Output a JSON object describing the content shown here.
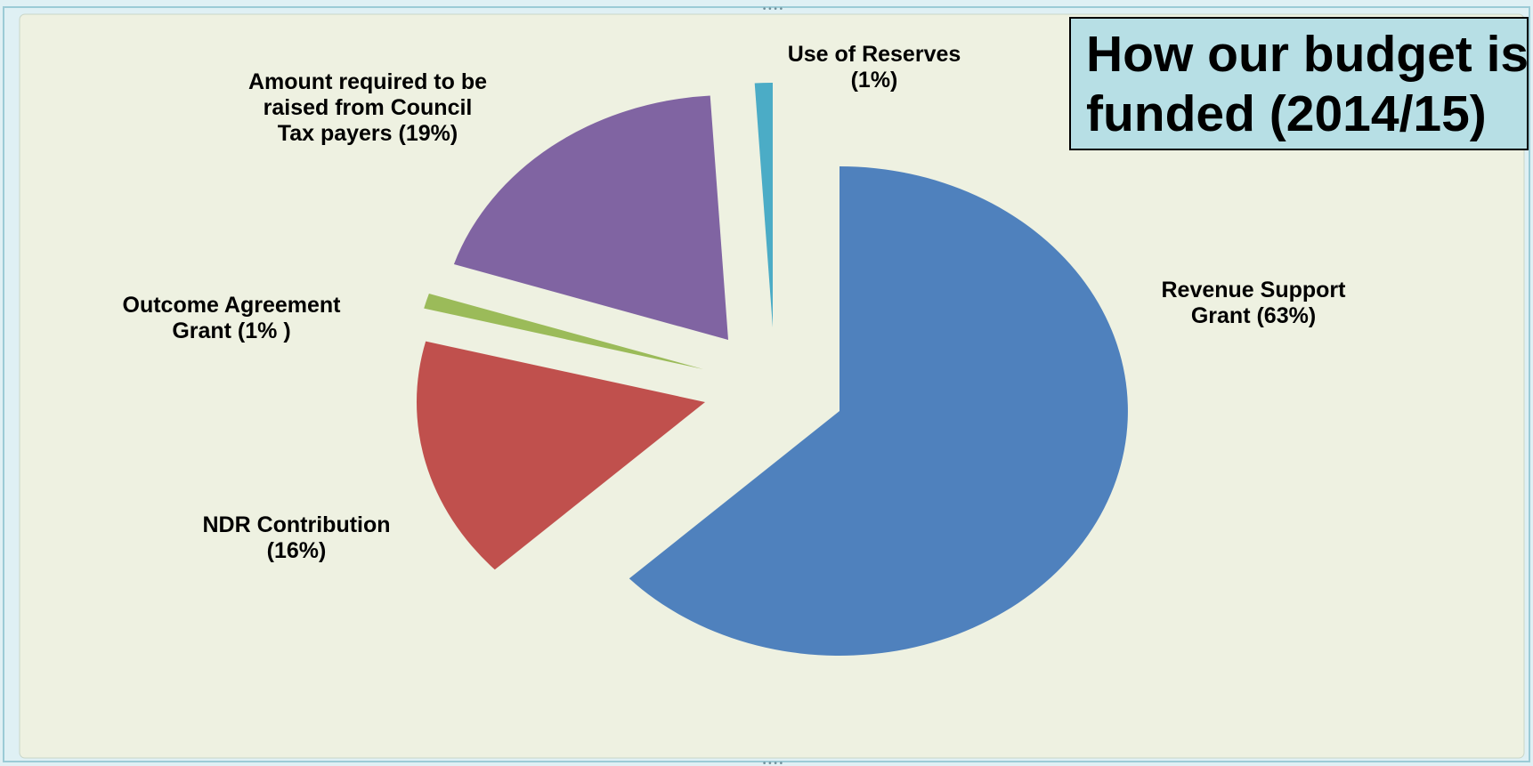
{
  "chart_data": {
    "type": "pie",
    "title_lines": [
      "How our budget is",
      "funded (2014/15)"
    ],
    "slices": [
      {
        "label_lines": [
          "Revenue Support",
          "Grant  (63%)"
        ],
        "value": 63,
        "color": "#4f81bd"
      },
      {
        "label_lines": [
          "NDR Contribution",
          "(16%)"
        ],
        "value": 16,
        "color": "#c0504d"
      },
      {
        "label_lines": [
          "Outcome Agreement",
          "Grant  (1% )"
        ],
        "value": 1,
        "color": "#9bbb59"
      },
      {
        "label_lines": [
          "Amount required to be",
          "raised from Council",
          "Tax payers  (19%)"
        ],
        "value": 19,
        "color": "#8064a2"
      },
      {
        "label_lines": [
          "Use of Reserves",
          "(1%)"
        ],
        "value": 1,
        "color": "#4bacc6"
      }
    ],
    "legend": "none",
    "background_color": "#eef1e1",
    "title_box_color": "#b7dfe5"
  }
}
